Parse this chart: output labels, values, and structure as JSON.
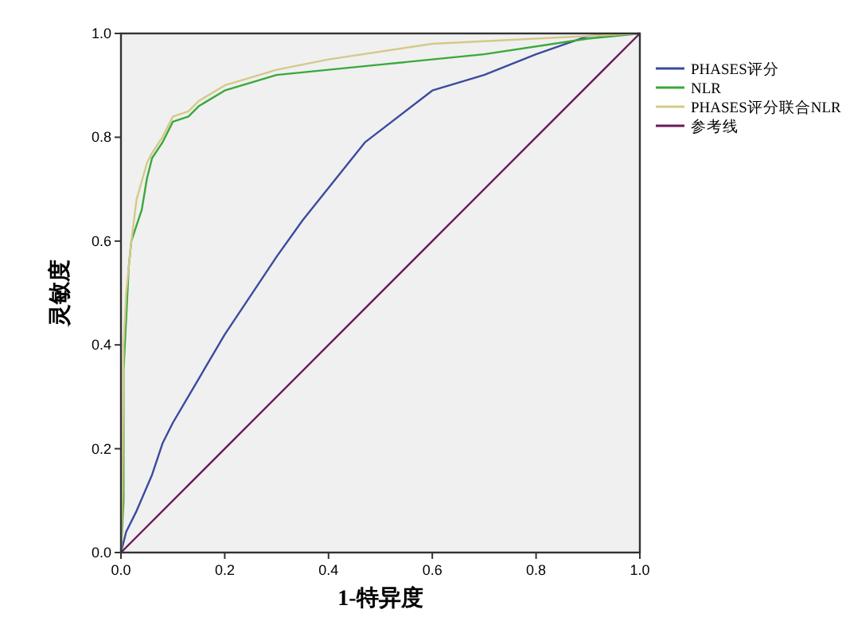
{
  "chart_data": {
    "type": "line",
    "xlabel": "1-特异度",
    "ylabel": "灵敏度",
    "xlim": [
      0,
      1
    ],
    "ylim": [
      0,
      1
    ],
    "xticks": [
      {
        "value": 0,
        "label": "0.0"
      },
      {
        "value": 0.2,
        "label": "0.2"
      },
      {
        "value": 0.4,
        "label": "0.4"
      },
      {
        "value": 0.6,
        "label": "0.6"
      },
      {
        "value": 0.8,
        "label": "0.8"
      },
      {
        "value": 1,
        "label": "1.0"
      }
    ],
    "yticks": [
      {
        "value": 0,
        "label": "0.0"
      },
      {
        "value": 0.2,
        "label": "0.2"
      },
      {
        "value": 0.4,
        "label": "0.4"
      },
      {
        "value": 0.6,
        "label": "0.6"
      },
      {
        "value": 0.8,
        "label": "0.8"
      },
      {
        "value": 1,
        "label": "1.0"
      }
    ],
    "legend": "right",
    "grid": false,
    "series": [
      {
        "name": "PHASES评分",
        "color": "#3a4aa0",
        "x": [
          0,
          0.01,
          0.03,
          0.06,
          0.08,
          0.1,
          0.2,
          0.3,
          0.35,
          0.47,
          0.6,
          0.7,
          0.8,
          0.9,
          1
        ],
        "values": [
          0,
          0.04,
          0.08,
          0.15,
          0.21,
          0.25,
          0.42,
          0.57,
          0.64,
          0.79,
          0.89,
          0.92,
          0.96,
          0.995,
          1
        ]
      },
      {
        "name": "NLR",
        "color": "#3aa83a",
        "x": [
          0,
          0.005,
          0.005,
          0.01,
          0.015,
          0.02,
          0.03,
          0.04,
          0.05,
          0.06,
          0.08,
          0.1,
          0.13,
          0.15,
          0.2,
          0.3,
          0.5,
          0.7,
          0.9,
          1
        ],
        "values": [
          0,
          0.1,
          0.35,
          0.45,
          0.55,
          0.6,
          0.63,
          0.66,
          0.72,
          0.76,
          0.79,
          0.83,
          0.84,
          0.86,
          0.89,
          0.92,
          0.94,
          0.96,
          0.99,
          1
        ]
      },
      {
        "name": "PHASES评分联合NLR",
        "color": "#d4c98a",
        "x": [
          0,
          0.003,
          0.005,
          0.01,
          0.02,
          0.03,
          0.05,
          0.06,
          0.08,
          0.1,
          0.13,
          0.15,
          0.2,
          0.3,
          0.4,
          0.6,
          0.8,
          1
        ],
        "values": [
          0,
          0.12,
          0.4,
          0.5,
          0.6,
          0.68,
          0.75,
          0.77,
          0.8,
          0.84,
          0.85,
          0.87,
          0.9,
          0.93,
          0.95,
          0.98,
          0.99,
          1
        ]
      },
      {
        "name": "参考线",
        "color": "#6a1a5a",
        "x": [
          0,
          1
        ],
        "values": [
          0,
          1
        ]
      }
    ]
  }
}
